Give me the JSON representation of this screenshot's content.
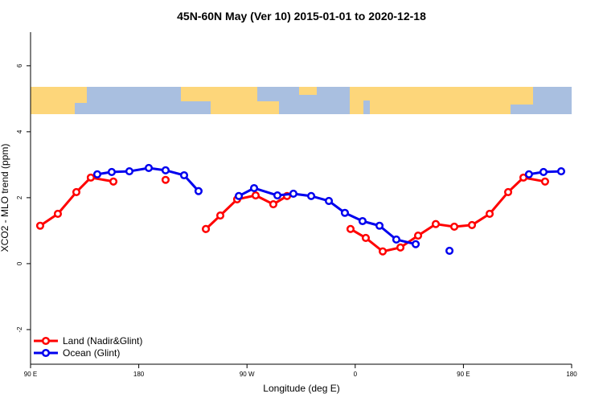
{
  "chart_data": {
    "type": "line",
    "title": "45N-60N May (Ver 10)   2015-01-01 to 2020-12-18",
    "x_label": "Longitude (deg E)",
    "y_label": "XCO2 - MLO trend (ppm)",
    "xlim": [
      90,
      540
    ],
    "xticks": [
      {
        "value": 90,
        "label": "90 E"
      },
      180,
      {
        "value": 270,
        "label": "90 W"
      },
      {
        "value": 360,
        "label": "0"
      },
      {
        "value": 450,
        "label": "90 E"
      },
      {
        "value": 540,
        "label": "180"
      }
    ],
    "ylim": [
      -3.05,
      7.02
    ],
    "yticks": [
      -2,
      0,
      2,
      4,
      6
    ],
    "legend": "lower left",
    "series": [
      {
        "name": "Land (Nadir&Glint)",
        "color": "#ff0000",
        "x": [
          98,
          112.7,
          128.1,
          140.1,
          158.9,
          null,
          202.3,
          null,
          235.8,
          247.8,
          261.8,
          277.2,
          291.9,
          303.3,
          null,
          356.1,
          368.8,
          382.9,
          397.6,
          412.3,
          427,
          442.4,
          457.1,
          471.8,
          487.2,
          499.9,
          517.9
        ],
        "values": [
          1.15,
          1.51,
          2.17,
          2.61,
          2.49,
          null,
          2.54,
          null,
          1.05,
          1.46,
          1.95,
          2.07,
          1.8,
          2.05,
          null,
          1.05,
          0.78,
          0.37,
          0.49,
          0.85,
          1.2,
          1.12,
          1.17,
          1.51,
          2.17,
          2.61,
          2.49
        ]
      },
      {
        "name": "Ocean (Glint)",
        "color": "#0000ee",
        "x": [
          145.5,
          157.5,
          172.2,
          188.3,
          202.3,
          217.7,
          229.7,
          null,
          263.2,
          275.9,
          295.3,
          308.6,
          323.4,
          338.1,
          351.4,
          366.1,
          380.2,
          394.2,
          410.3,
          null,
          438.4,
          null,
          504.5,
          516.6,
          531.3
        ],
        "values": [
          2.71,
          2.78,
          2.8,
          2.9,
          2.83,
          2.68,
          2.2,
          null,
          2.05,
          2.29,
          2.07,
          2.12,
          2.05,
          1.9,
          1.54,
          1.29,
          1.15,
          0.73,
          0.59,
          null,
          0.39,
          null,
          2.71,
          2.78,
          2.8
        ]
      }
    ]
  }
}
